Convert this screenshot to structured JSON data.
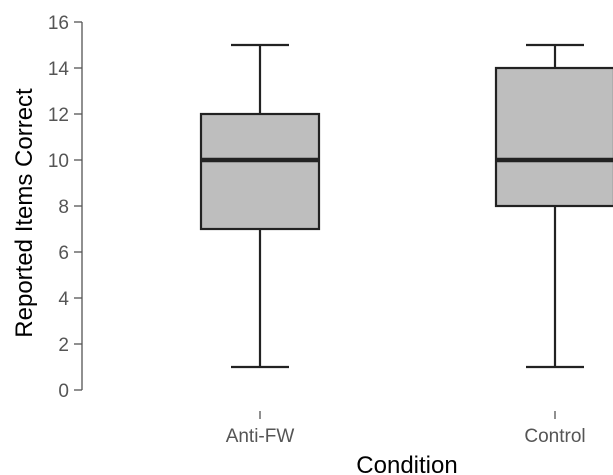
{
  "chart_data": {
    "type": "box",
    "xlabel": "Condition",
    "ylabel": "Reported Items Correct",
    "ylim": [
      0,
      16
    ],
    "y_ticks": [
      0,
      2,
      4,
      6,
      8,
      10,
      12,
      14,
      16
    ],
    "categories": [
      "Anti-FW",
      "Control"
    ],
    "boxes": [
      {
        "category": "Anti-FW",
        "min": 1,
        "q1": 7,
        "median": 10,
        "q3": 12,
        "max": 15
      },
      {
        "category": "Control",
        "min": 1,
        "q1": 8,
        "median": 10,
        "q3": 14,
        "max": 15
      }
    ],
    "box_fill": "#bebebe",
    "line_color": "#222222",
    "grid": false
  }
}
